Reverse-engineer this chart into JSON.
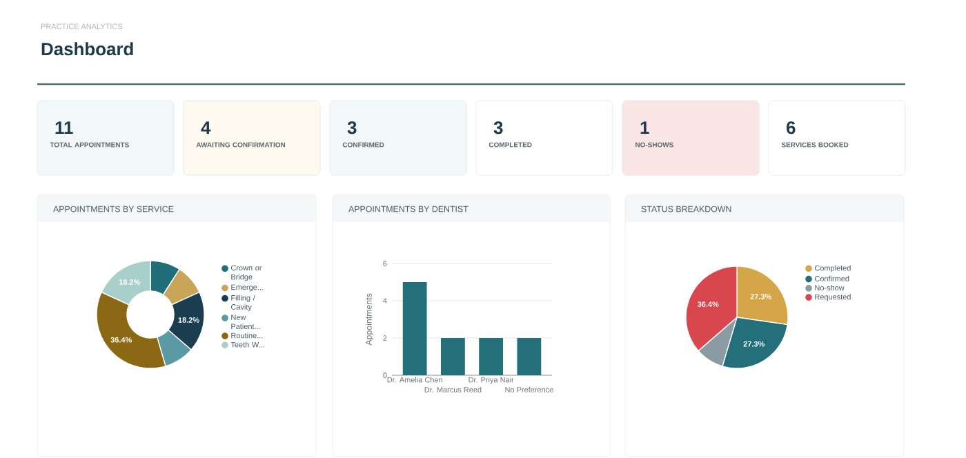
{
  "chart_data": [
    {
      "type": "other",
      "title": "Dashboard",
      "subtitle": "PRACTICE ANALYTICS",
      "categories": [
        "TOTAL APPOINTMENTS",
        "AWAITING CONFIRMATION",
        "CONFIRMED",
        "COMPLETED",
        "NO-SHOWS",
        "SERVICES BOOKED"
      ],
      "values": [
        11,
        4,
        3,
        3,
        1,
        6
      ],
      "colors": [
        "#f2f8fa",
        "#fffaf0",
        "#f2f8fa",
        "#ffffff",
        "#fbe6e6",
        "#ffffff"
      ],
      "data_labels": true
    },
    {
      "type": "donut",
      "title": "APPOINTMENTS BY SERVICE",
      "categories": [
        "Crown or Bridge",
        "Emerge...",
        "Filling / Cavity",
        "New Patient...",
        "Routine...",
        "Teeth W..."
      ],
      "values": [
        9.1,
        9.1,
        18.2,
        9.1,
        36.4,
        18.2
      ],
      "colors": [
        "#1f6e7a",
        "#c9a55a",
        "#1a3d4f",
        "#5b9aa5",
        "#8b6914",
        "#a8cfc9"
      ],
      "value_labels": [
        null,
        null,
        "18.2%",
        null,
        "36.4%",
        "18.2%"
      ],
      "legend": "right"
    },
    {
      "type": "bar",
      "title": "APPOINTMENTS BY DENTIST",
      "ylabel": "Appointments",
      "categories": [
        "Dr. Amelia Chen",
        "Dr. Marcus Reed",
        "Dr. Priya Nair",
        "No Preference"
      ],
      "values": [
        5,
        2,
        2,
        2
      ],
      "color": "#236f7a",
      "ylim": [
        0,
        6
      ],
      "yticks": [
        0,
        2,
        4,
        6
      ],
      "grid": "y"
    },
    {
      "type": "pie",
      "title": "STATUS BREAKDOWN",
      "categories": [
        "Completed",
        "Confirmed",
        "No-show",
        "Requested"
      ],
      "values": [
        27.3,
        27.3,
        9.0,
        36.4
      ],
      "colors": [
        "#d4a647",
        "#236f7a",
        "#8a9ba3",
        "#d9474e"
      ],
      "value_labels": [
        "27.3%",
        "27.3%",
        null,
        "36.4%"
      ],
      "legend": "right"
    }
  ]
}
